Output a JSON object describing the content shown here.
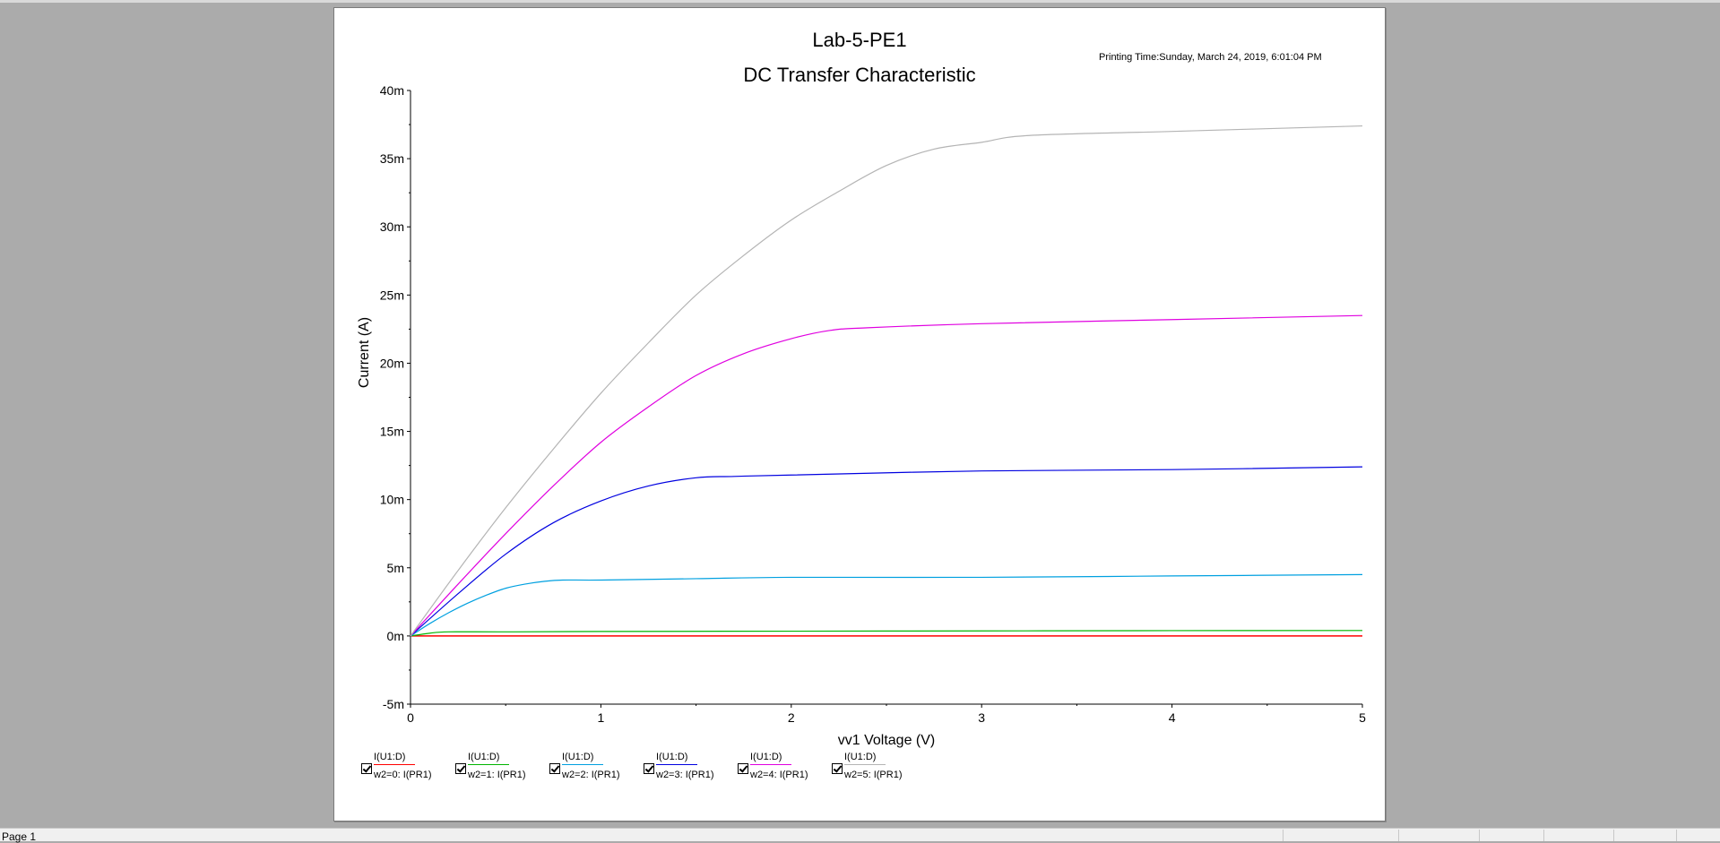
{
  "header": {
    "title": "Lab-5-PE1",
    "subtitle": "DC Transfer Characteristic",
    "printing_time": "Printing Time:Sunday, March 24, 2019, 6:01:04 PM"
  },
  "chart_data": {
    "type": "line",
    "title": "Lab-5-PE1",
    "subtitle": "DC Transfer Characteristic",
    "xlabel": "vv1 Voltage (V)",
    "ylabel": "Current (A)",
    "xlim": [
      0,
      5
    ],
    "ylim": [
      -0.005,
      0.04
    ],
    "x_ticks": [
      0,
      1,
      2,
      3,
      4,
      5
    ],
    "x_tick_labels": [
      "0",
      "1",
      "2",
      "3",
      "4",
      "5"
    ],
    "y_ticks": [
      -0.005,
      0,
      0.005,
      0.01,
      0.015,
      0.02,
      0.025,
      0.03,
      0.035,
      0.04
    ],
    "y_tick_labels": [
      "-5m",
      "0m",
      "5m",
      "10m",
      "15m",
      "20m",
      "25m",
      "30m",
      "35m",
      "40m"
    ],
    "grid": false,
    "legend_position": "bottom",
    "series": [
      {
        "name": "w2=0: I(PR1)",
        "color": "#ff0000",
        "x": [
          0,
          1,
          2,
          3,
          4,
          5
        ],
        "y": [
          0,
          0,
          0,
          0,
          0,
          0
        ]
      },
      {
        "name": "w2=1: I(PR1)",
        "color": "#00b400",
        "x": [
          0,
          0.1,
          0.2,
          0.5,
          1,
          2,
          3,
          4,
          5
        ],
        "y": [
          0,
          0.0002,
          0.0003,
          0.0003,
          0.00033,
          0.00035,
          0.00037,
          0.00039,
          0.0004
        ]
      },
      {
        "name": "w2=2: I(PR1)",
        "color": "#00a0e0",
        "x": [
          0,
          0.1,
          0.2,
          0.3,
          0.4,
          0.5,
          0.6,
          0.7,
          0.8,
          1,
          1.5,
          2,
          3,
          4,
          5
        ],
        "y": [
          0,
          0.0009,
          0.0017,
          0.0024,
          0.003,
          0.0035,
          0.0038,
          0.004,
          0.0041,
          0.0041,
          0.0042,
          0.0043,
          0.0043,
          0.0044,
          0.0045
        ]
      },
      {
        "name": "w2=3: I(PR1)",
        "color": "#0000e0",
        "x": [
          0,
          0.25,
          0.5,
          0.75,
          1,
          1.25,
          1.5,
          1.7,
          2,
          3,
          4,
          5
        ],
        "y": [
          0,
          0.0031,
          0.006,
          0.0083,
          0.0099,
          0.011,
          0.0116,
          0.0117,
          0.0118,
          0.0121,
          0.0122,
          0.0124
        ]
      },
      {
        "name": "w2=4: I(PR1)",
        "color": "#e000e0",
        "x": [
          0,
          0.25,
          0.5,
          0.75,
          1,
          1.25,
          1.5,
          1.75,
          2,
          2.2,
          2.4,
          3,
          4,
          5
        ],
        "y": [
          0,
          0.0038,
          0.0075,
          0.011,
          0.0142,
          0.0168,
          0.0191,
          0.0207,
          0.0218,
          0.0224,
          0.0226,
          0.0229,
          0.0232,
          0.0235
        ]
      },
      {
        "name": "w2=5: I(PR1)",
        "color": "#b4b4b4",
        "x": [
          0,
          0.25,
          0.5,
          0.75,
          1,
          1.25,
          1.5,
          1.75,
          2,
          2.25,
          2.5,
          2.75,
          3,
          3.25,
          4,
          5
        ],
        "y": [
          0,
          0.0048,
          0.0094,
          0.0137,
          0.0178,
          0.0215,
          0.025,
          0.0279,
          0.0305,
          0.0326,
          0.0345,
          0.0357,
          0.0362,
          0.0367,
          0.037,
          0.0374
        ]
      }
    ]
  },
  "legend": {
    "items": [
      {
        "top": "I(U1:D)",
        "bottom": "w2=0: I(PR1)",
        "color": "#ff0000"
      },
      {
        "top": "I(U1:D)",
        "bottom": "w2=1: I(PR1)",
        "color": "#00b400"
      },
      {
        "top": "I(U1:D)",
        "bottom": "w2=2: I(PR1)",
        "color": "#00a0e0"
      },
      {
        "top": "I(U1:D)",
        "bottom": "w2=3: I(PR1)",
        "color": "#0000e0"
      },
      {
        "top": "I(U1:D)",
        "bottom": "w2=4: I(PR1)",
        "color": "#e000e0"
      },
      {
        "top": "I(U1:D)",
        "bottom": "w2=5: I(PR1)",
        "color": "#b4b4b4"
      }
    ]
  },
  "status_bar": {
    "text": "Page 1"
  }
}
